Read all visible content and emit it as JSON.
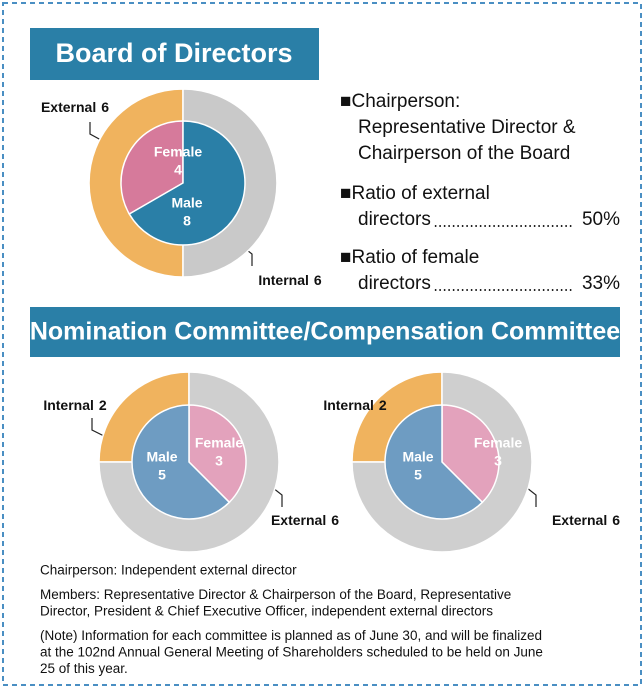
{
  "board_title": "Board of Directors",
  "committee_title": "Nomination Committee/Compensation Committee",
  "board_notes": {
    "chairperson": [
      "■Chairperson:",
      "Representative Director &",
      "Chairperson of the Board"
    ],
    "ratios": [
      {
        "label": [
          "■Ratio of external",
          "directors"
        ],
        "value": "50%"
      },
      {
        "label": [
          "■Ratio of female",
          "directors"
        ],
        "value": "33%"
      }
    ]
  },
  "footer": [
    [
      "Chairperson: Independent external director"
    ],
    [
      "Members: Representative Director & Chairperson of the Board, Representative",
      "Director, President & Chief Executive Officer, independent external directors"
    ],
    [
      "(Note) Information for each committee is planned as of June 30, and will be finalized",
      "at the 102nd Annual General Meeting of Shareholders scheduled to be held on June",
      "25 of this year."
    ]
  ],
  "chart_data": [
    {
      "type": "donut",
      "rings": [
        {
          "categories": [
            "External",
            "Internal"
          ],
          "values": [
            6,
            6
          ],
          "colors": [
            "#f0b35e",
            "#c9c9c9"
          ]
        },
        {
          "categories": [
            "Female",
            "Male"
          ],
          "values": [
            4,
            8
          ],
          "colors": [
            "#d67a9b",
            "#2a7fa7"
          ]
        }
      ]
    },
    {
      "type": "donut",
      "rings": [
        {
          "categories": [
            "Internal",
            "External"
          ],
          "values": [
            2,
            6
          ],
          "colors": [
            "#f0b35e",
            "#cfcfcf"
          ]
        },
        {
          "categories": [
            "Female",
            "Male"
          ],
          "values": [
            3,
            5
          ],
          "colors": [
            "#e3a2bc",
            "#6e9cc2"
          ]
        }
      ]
    },
    {
      "type": "donut",
      "rings": [
        {
          "categories": [
            "Internal",
            "External"
          ],
          "values": [
            2,
            6
          ],
          "colors": [
            "#f0b35e",
            "#cfcfcf"
          ]
        },
        {
          "categories": [
            "Female",
            "Male"
          ],
          "values": [
            3,
            5
          ],
          "colors": [
            "#e3a2bc",
            "#6e9cc2"
          ]
        }
      ]
    }
  ]
}
